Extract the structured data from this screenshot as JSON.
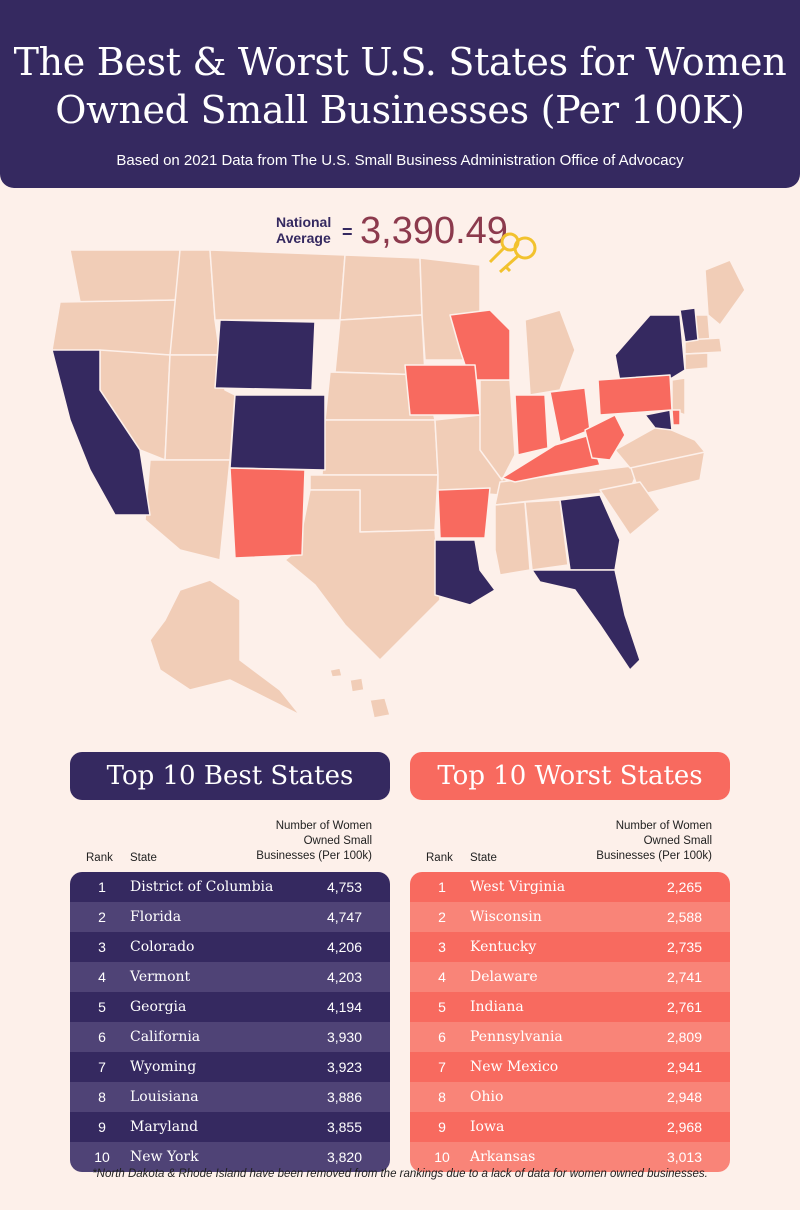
{
  "header": {
    "title_line1": "The Best & Worst U.S. States for Women",
    "title_line2": "Owned Small Businesses (Per 100K)",
    "subtitle": "Based on 2021 Data from The U.S. Small Business Administration Office of Advocacy"
  },
  "national_average": {
    "label_line1": "National",
    "label_line2": "Average",
    "equals": "=",
    "value": "3,390.49"
  },
  "colors": {
    "navy": "#352960",
    "coral": "#f86a5f",
    "neutral_state": "#f1cdb7",
    "background": "#fdf0ea",
    "key_icon": "#f2c22e"
  },
  "icons": [
    "key-icon"
  ],
  "best": {
    "title": "Top 10 Best States",
    "col_rank": "Rank",
    "col_state": "State",
    "col_num_1": "Number of Women",
    "col_num_2": "Owned Small",
    "col_num_3": "Businesses (Per 100k)",
    "rows": [
      {
        "rank": "1",
        "state": "District of Columbia",
        "value": "4,753"
      },
      {
        "rank": "2",
        "state": "Florida",
        "value": "4,747"
      },
      {
        "rank": "3",
        "state": "Colorado",
        "value": "4,206"
      },
      {
        "rank": "4",
        "state": "Vermont",
        "value": "4,203"
      },
      {
        "rank": "5",
        "state": "Georgia",
        "value": "4,194"
      },
      {
        "rank": "6",
        "state": "California",
        "value": "3,930"
      },
      {
        "rank": "7",
        "state": "Wyoming",
        "value": "3,923"
      },
      {
        "rank": "8",
        "state": "Louisiana",
        "value": "3,886"
      },
      {
        "rank": "9",
        "state": "Maryland",
        "value": "3,855"
      },
      {
        "rank": "10",
        "state": "New York",
        "value": "3,820"
      }
    ]
  },
  "worst": {
    "title": "Top 10 Worst States",
    "col_rank": "Rank",
    "col_state": "State",
    "col_num_1": "Number of Women",
    "col_num_2": "Owned Small",
    "col_num_3": "Businesses (Per 100k)",
    "rows": [
      {
        "rank": "1",
        "state": "West Virginia",
        "value": "2,265"
      },
      {
        "rank": "2",
        "state": "Wisconsin",
        "value": "2,588"
      },
      {
        "rank": "3",
        "state": "Kentucky",
        "value": "2,735"
      },
      {
        "rank": "4",
        "state": "Delaware",
        "value": "2,741"
      },
      {
        "rank": "5",
        "state": "Indiana",
        "value": "2,761"
      },
      {
        "rank": "6",
        "state": "Pennsylvania",
        "value": "2,809"
      },
      {
        "rank": "7",
        "state": "New Mexico",
        "value": "2,941"
      },
      {
        "rank": "8",
        "state": "Ohio",
        "value": "2,948"
      },
      {
        "rank": "9",
        "state": "Iowa",
        "value": "2,968"
      },
      {
        "rank": "10",
        "state": "Arkansas",
        "value": "3,013"
      }
    ]
  },
  "footnote": "*North Dakota & Rhode Island have been removed from the rankings due to a lack of data for women owned businesses."
}
